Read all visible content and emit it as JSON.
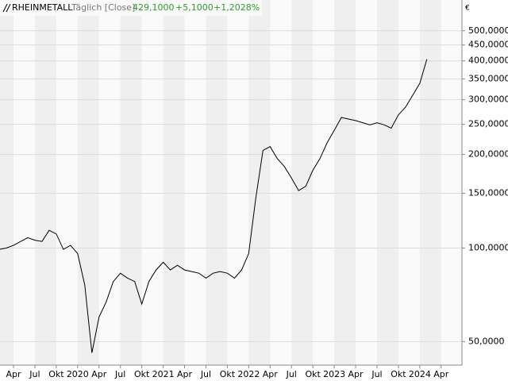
{
  "chart_data": {
    "type": "line",
    "title": "RHEINMETALL",
    "subtitle": "Täglich [Close]",
    "last_value": "429,1000",
    "change": "+5,1000",
    "change_pct": "+1,2028%",
    "unit": "€",
    "log_scale": true,
    "grid": true,
    "color": "#000000",
    "x": [
      "2019-02",
      "2019-03",
      "2019-04",
      "2019-05",
      "2019-06",
      "2019-07",
      "2019-08",
      "2019-09",
      "2019-10",
      "2019-11",
      "2019-12",
      "2020-01",
      "2020-02",
      "2020-03",
      "2020-04",
      "2020-05",
      "2020-06",
      "2020-07",
      "2020-08",
      "2020-09",
      "2020-10",
      "2020-11",
      "2020-12",
      "2021-01",
      "2021-02",
      "2021-03",
      "2021-04",
      "2021-05",
      "2021-06",
      "2021-07",
      "2021-08",
      "2021-09",
      "2021-10",
      "2021-11",
      "2021-12",
      "2022-01",
      "2022-02",
      "2022-03",
      "2022-04",
      "2022-05",
      "2022-06",
      "2022-07",
      "2022-08",
      "2022-09",
      "2022-10",
      "2022-11",
      "2022-12",
      "2023-01",
      "2023-02",
      "2023-03",
      "2023-04",
      "2023-05",
      "2023-06",
      "2023-07",
      "2023-08",
      "2023-09",
      "2023-10",
      "2023-11",
      "2023-12",
      "2024-01",
      "2024-02"
    ],
    "values": [
      99,
      100,
      102,
      105,
      108,
      106,
      105,
      114,
      111,
      99,
      102,
      96,
      76,
      46,
      60,
      67,
      78,
      83,
      80,
      78,
      66,
      78,
      85,
      90,
      85,
      88,
      85,
      84,
      83,
      80,
      83,
      84,
      83,
      80,
      85,
      96,
      145,
      206,
      212,
      194,
      183,
      168,
      153,
      158,
      178,
      194,
      218,
      239,
      263,
      260,
      257,
      253,
      249,
      253,
      249,
      243,
      268,
      284,
      310,
      339,
      405
    ],
    "ylim": [
      42,
      628
    ],
    "yticks": [
      {
        "value": 50,
        "label": "50,0000"
      },
      {
        "value": 100,
        "label": "100,0000"
      },
      {
        "value": 150,
        "label": "150,0000"
      },
      {
        "value": 200,
        "label": "200,0000"
      },
      {
        "value": 250,
        "label": "250,0000"
      },
      {
        "value": 300,
        "label": "300,0000"
      },
      {
        "value": 350,
        "label": "350,0000"
      },
      {
        "value": 400,
        "label": "400,0000"
      },
      {
        "value": 450,
        "label": "450,0000"
      },
      {
        "value": 500,
        "label": "500,0000"
      }
    ],
    "xticks": [
      {
        "value": "2019-04",
        "label": "Apr"
      },
      {
        "value": "2019-07",
        "label": "Jul"
      },
      {
        "value": "2019-10",
        "label": "Okt"
      },
      {
        "value": "2020-01",
        "label": "2020"
      },
      {
        "value": "2020-04",
        "label": "Apr"
      },
      {
        "value": "2020-07",
        "label": "Jul"
      },
      {
        "value": "2020-10",
        "label": "Okt"
      },
      {
        "value": "2021-01",
        "label": "2021"
      },
      {
        "value": "2021-04",
        "label": "Apr"
      },
      {
        "value": "2021-07",
        "label": "Jul"
      },
      {
        "value": "2021-10",
        "label": "Okt"
      },
      {
        "value": "2022-01",
        "label": "2022"
      },
      {
        "value": "2022-04",
        "label": "Apr"
      },
      {
        "value": "2022-07",
        "label": "Jul"
      },
      {
        "value": "2022-10",
        "label": "Okt"
      },
      {
        "value": "2023-01",
        "label": "2023"
      },
      {
        "value": "2023-04",
        "label": "Apr"
      },
      {
        "value": "2023-07",
        "label": "Jul"
      },
      {
        "value": "2023-10",
        "label": "Okt"
      },
      {
        "value": "2024-01",
        "label": "2024"
      },
      {
        "value": "2024-04",
        "label": "Apr"
      }
    ]
  }
}
